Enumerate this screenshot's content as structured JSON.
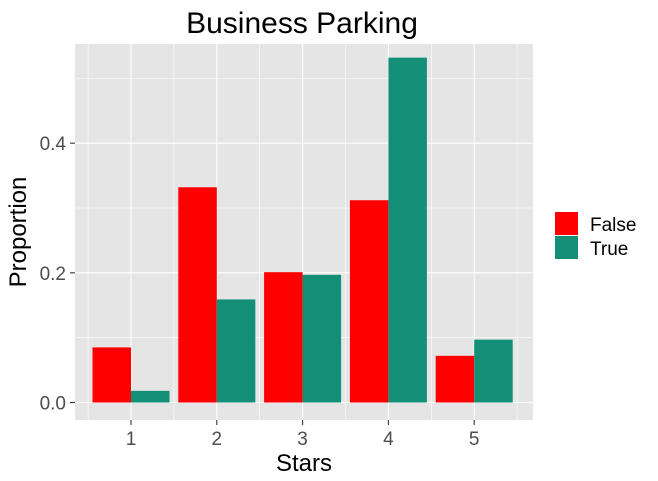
{
  "chart_data": {
    "type": "bar",
    "title": "Business Parking",
    "xlabel": "Stars",
    "ylabel": "Proportion",
    "categories": [
      "1",
      "2",
      "3",
      "4",
      "5"
    ],
    "series": [
      {
        "name": "False",
        "color": "#ff0000",
        "values": [
          0.085,
          0.332,
          0.201,
          0.312,
          0.072
        ]
      },
      {
        "name": "True",
        "color": "#148f77",
        "values": [
          0.018,
          0.159,
          0.197,
          0.532,
          0.097
        ]
      }
    ],
    "y_ticks": [
      0.0,
      0.2,
      0.4
    ],
    "y_tick_labels": [
      "0.0",
      "0.2",
      "0.4"
    ],
    "ylim": [
      -0.027,
      0.553
    ],
    "grid": true,
    "legend_position": "right",
    "panel_background": "#e5e5e5",
    "grid_color": "#ffffff"
  }
}
